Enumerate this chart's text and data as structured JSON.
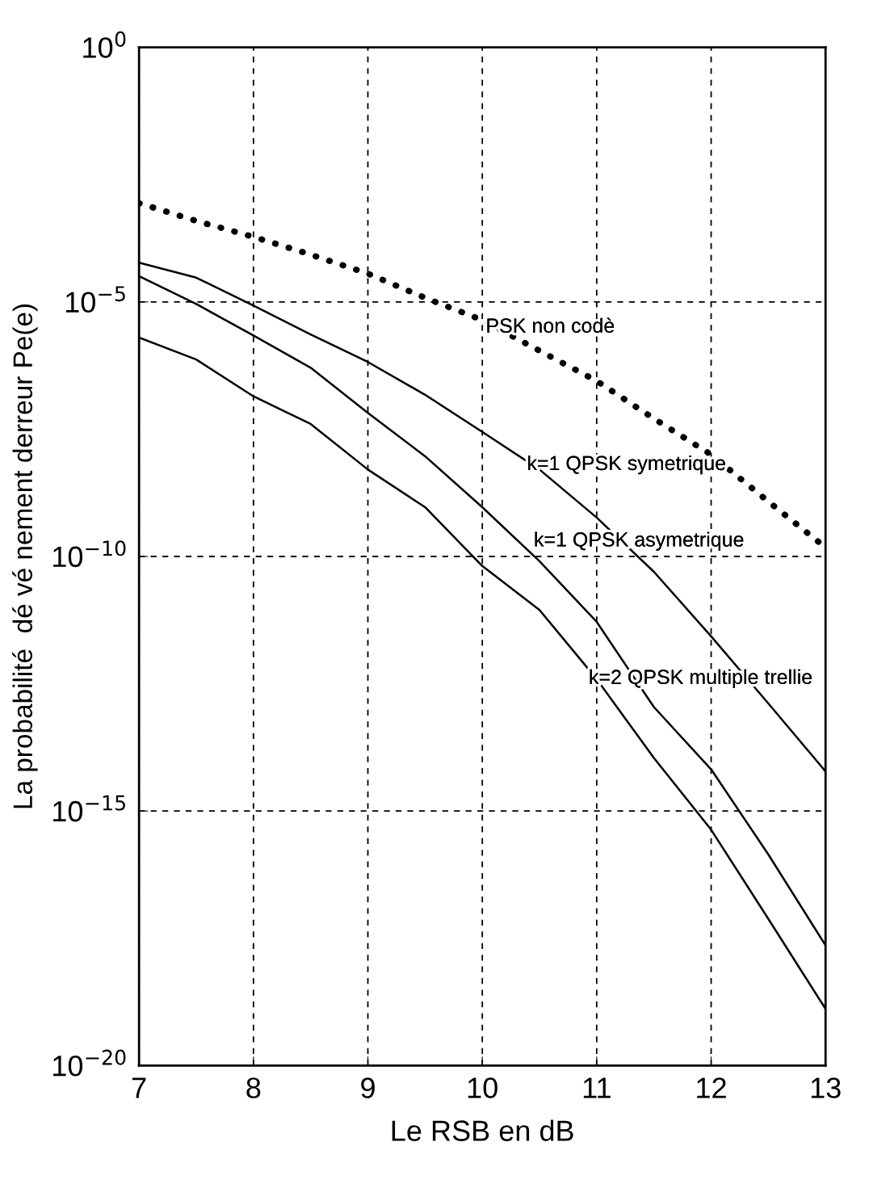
{
  "chart_data": {
    "type": "line",
    "xlabel": "Le RSB en dB",
    "ylabel": "La probabilité  dé vé nement derreur Pe(e)",
    "x": [
      7,
      7.5,
      8,
      8.5,
      9,
      9.5,
      10,
      10.5,
      11,
      11.5,
      12,
      12.5,
      13
    ],
    "series": [
      {
        "color": "#000000",
        "line_style": "dotted",
        "values": [
          0.00087,
          0.00039,
          0.00019,
          8.5e-05,
          3.6e-05,
          1.2e-05,
          4.4e-06,
          1.1e-06,
          2.8e-07,
          5.1e-08,
          1e-08,
          1.2e-09,
          1.5e-10
        ]
      },
      {
        "color": "#000000",
        "line_style": "solid",
        "values": [
          5.9e-05,
          3e-05,
          8.5e-06,
          2.3e-06,
          6.6e-07,
          1.5e-07,
          2.8e-08,
          5.1e-09,
          5.8e-10,
          5e-11,
          2.7e-12,
          1.3e-13,
          6e-15
        ]
      },
      {
        "color": "#000000",
        "line_style": "solid",
        "values": [
          3.2e-05,
          9.1e-06,
          2.2e-06,
          5.1e-07,
          6.6e-08,
          9.3e-09,
          9.3e-10,
          8.1e-11,
          5.2e-12,
          1.1e-13,
          6.6e-15,
          1.4e-16,
          2.3e-18
        ]
      },
      {
        "color": "#000000",
        "line_style": "solid",
        "values": [
          2e-06,
          7.4e-07,
          1.4e-07,
          4e-08,
          5.1e-09,
          9.3e-10,
          6.5e-11,
          8.9e-12,
          3.9e-13,
          1.1e-14,
          4.3e-16,
          7.6e-18,
          1.3e-19
        ]
      }
    ],
    "annotations": [
      "PSK non codè",
      "k=1 QPSK symetrique",
      "k=1 QPSK asymetrique",
      "k=2 QPSK multiple trellie"
    ],
    "log": "y",
    "xlim": [
      7,
      13
    ],
    "xticks": [
      7,
      8,
      9,
      10,
      11,
      12,
      13
    ],
    "ylim": [
      1e-20,
      1
    ],
    "yticks": [
      {
        "value": 1e-20,
        "label": "10$^{−20}$"
      },
      {
        "value": 1e-15,
        "label": "10$^{−15}$"
      },
      {
        "value": 1e-10,
        "label": "10$^{−10}$"
      },
      {
        "value": 1e-05,
        "label": "10$^{−5}$"
      },
      {
        "value": 1,
        "label": "10$^{0}$"
      }
    ],
    "grid": true,
    "legend": false
  }
}
